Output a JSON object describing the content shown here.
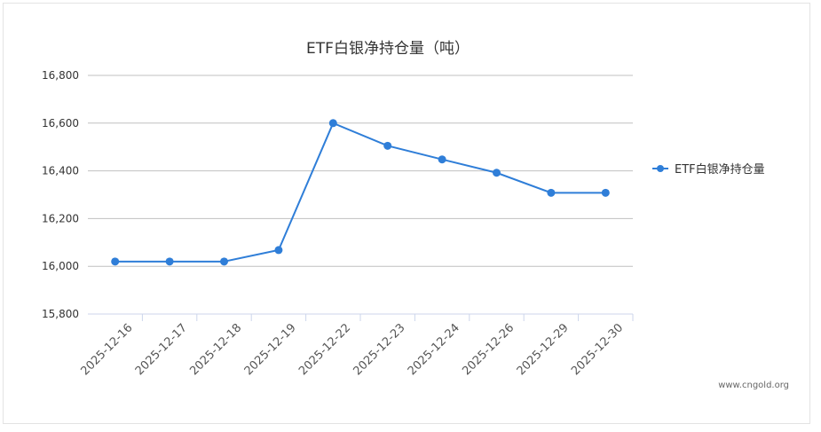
{
  "chart_data": {
    "type": "line",
    "title": "ETF白银净持仓量（吨）",
    "categories": [
      "2025-12-16",
      "2025-12-17",
      "2025-12-18",
      "2025-12-19",
      "2025-12-22",
      "2025-12-23",
      "2025-12-24",
      "2025-12-26",
      "2025-12-29",
      "2025-12-30"
    ],
    "series": [
      {
        "name": "ETF白银净持仓量",
        "color": "#2f7ed8",
        "values": [
          16020,
          16020,
          16020,
          16068,
          16600,
          16505,
          16448,
          16392,
          16308,
          16308
        ]
      }
    ],
    "ylim": [
      15800,
      16800
    ],
    "yticks": [
      {
        "value": 15800,
        "label": "15,800"
      },
      {
        "value": 16000,
        "label": "16,000"
      },
      {
        "value": 16200,
        "label": "16,200"
      },
      {
        "value": 16400,
        "label": "16,400"
      },
      {
        "value": 16600,
        "label": "16,600"
      },
      {
        "value": 16800,
        "label": "16,800"
      }
    ],
    "grid": true,
    "legend": "right",
    "source": "www.cngold.org"
  }
}
